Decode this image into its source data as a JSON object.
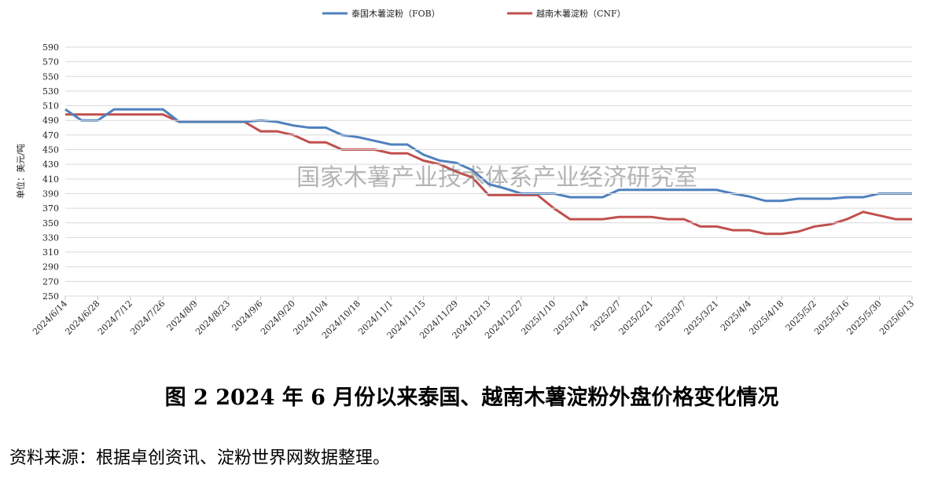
{
  "chart_data": {
    "type": "line",
    "caption": "图 2   2024 年 6 月份以来泰国、越南木薯淀粉外盘价格变化情况",
    "source": "资料来源：根据卓创资讯、淀粉世界网数据整理。",
    "watermark": "国家木薯产业技术体系产业经济研究室",
    "y_label": "单位：美元/吨",
    "categories": [
      "2024/6/14",
      null,
      "2024/6/28",
      null,
      "2024/7/12",
      null,
      "2024/7/26",
      null,
      "2024/8/9",
      null,
      "2024/8/23",
      null,
      "2024/9/6",
      null,
      "2024/9/20",
      null,
      "2024/10/4",
      null,
      "2024/10/18",
      null,
      "2024/11/1",
      null,
      "2024/11/15",
      null,
      "2024/11/29",
      null,
      "2024/12/13",
      null,
      "2024/12/27",
      null,
      "2025/1/10",
      null,
      "2025/1/24",
      null,
      "2025/2/7",
      null,
      "2025/2/21",
      null,
      "2025/3/7",
      null,
      "2025/3/21",
      null,
      "2025/4/4",
      null,
      "2025/4/18",
      null,
      "2025/5/2",
      null,
      "2025/5/16",
      null,
      "2025/5/30",
      null,
      "2025/6/13"
    ],
    "series": [
      {
        "name": "泰国木薯淀粉（FOB）",
        "color": "#4f81bd",
        "values": [
          505,
          490,
          490,
          505,
          505,
          505,
          505,
          488,
          488,
          488,
          488,
          488,
          490,
          488,
          483,
          480,
          480,
          470,
          467,
          462,
          457,
          457,
          443,
          435,
          432,
          422,
          403,
          397,
          390,
          390,
          390,
          385,
          385,
          385,
          395,
          395,
          395,
          395,
          395,
          395,
          395,
          390,
          386,
          380,
          380,
          383,
          383,
          383,
          385,
          385,
          390,
          390,
          390
        ]
      },
      {
        "name": "越南木薯淀粉（CNF）",
        "color": "#c0504d",
        "values": [
          498,
          498,
          498,
          498,
          498,
          498,
          498,
          488,
          488,
          488,
          488,
          488,
          475,
          475,
          470,
          460,
          460,
          450,
          450,
          450,
          445,
          445,
          435,
          430,
          420,
          412,
          388,
          388,
          388,
          388,
          370,
          355,
          355,
          355,
          358,
          358,
          358,
          355,
          355,
          345,
          345,
          340,
          340,
          335,
          335,
          338,
          345,
          348,
          355,
          365,
          360,
          355,
          355
        ]
      }
    ],
    "ylim": [
      250,
      590
    ],
    "yticks": [
      250,
      270,
      290,
      310,
      330,
      350,
      370,
      390,
      410,
      430,
      450,
      470,
      490,
      510,
      530,
      550,
      570,
      590
    ],
    "grid": true
  }
}
